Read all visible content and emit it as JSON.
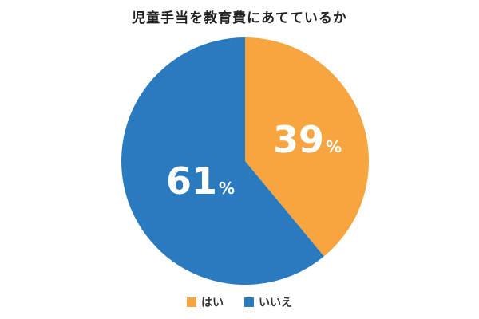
{
  "chart_data": {
    "type": "pie",
    "title": "児童手当を教育費にあてているか",
    "categories": [
      "はい",
      "いいえ"
    ],
    "values": [
      39,
      61
    ],
    "unit": "%",
    "colors": [
      "#F6A540",
      "#2A7ABF"
    ],
    "labels": [
      "39%",
      "61%"
    ],
    "legend_position": "bottom",
    "start_angle_deg": 0,
    "direction": "clockwise"
  },
  "title": "児童手当を教育費にあてているか",
  "slices": [
    {
      "num": "39",
      "pct": "%"
    },
    {
      "num": "61",
      "pct": "%"
    }
  ],
  "legend": [
    {
      "label": "はい",
      "color": "#F6A540"
    },
    {
      "label": "いいえ",
      "color": "#2A7ABF"
    }
  ]
}
